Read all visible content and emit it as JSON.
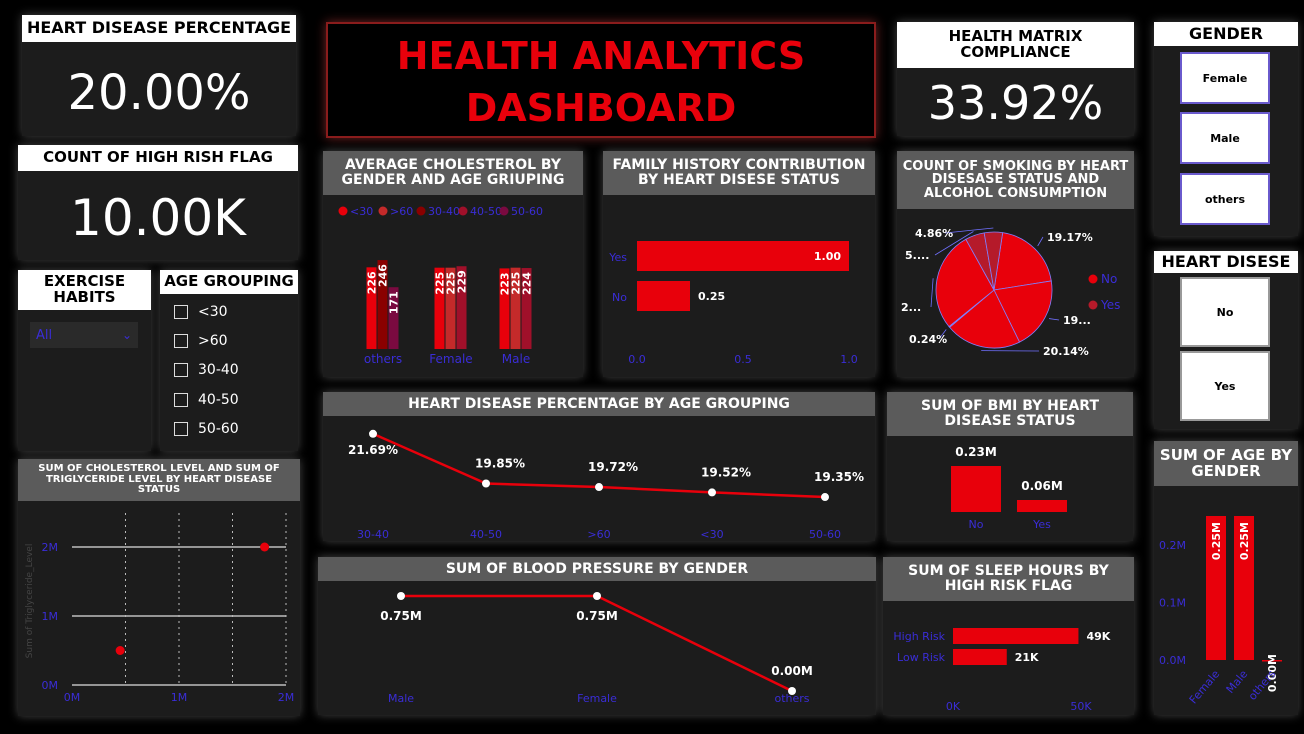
{
  "title": {
    "line1": "HEALTH ANALYTICS",
    "line2": "DASHBOARD"
  },
  "cards": {
    "heart_pct": {
      "label": "HEART DISEASE PERCENTAGE",
      "value": "20.00%"
    },
    "high_risk": {
      "label": "COUNT OF HIGH RISH FLAG",
      "value": "10.00K"
    },
    "compliance": {
      "label1": "HEALTH MATRIX",
      "label2": "COMPLIANCE",
      "value": "33.92%"
    }
  },
  "slicers": {
    "gender": {
      "label": "GENDER",
      "options": [
        "Female",
        "Male",
        "others"
      ]
    },
    "heart": {
      "label": "HEART DISESE",
      "options": [
        "No",
        "Yes"
      ]
    },
    "exercise": {
      "label1": "EXERCISE",
      "label2": "HABITS",
      "selected": "All"
    },
    "age": {
      "label": "AGE GROUPING",
      "options": [
        "<30",
        ">60",
        "30-40",
        "40-50",
        "50-60"
      ]
    }
  },
  "colors": {
    "accent": "#e8000b",
    "axis": "#3a2dd6",
    "panel": "#1c1c1c",
    "header": "#5b5b5b"
  },
  "chart_data": [
    {
      "id": "chol_by_gender_age",
      "type": "bar",
      "title": "AVERAGE CHOLESTEROL BY GENDER AND AGE GRIUPING",
      "title1": "AVERAGE CHOLESTEROL BY",
      "title2": "GENDER AND AGE GRIUPING",
      "categories": [
        "others",
        "Female",
        "Male"
      ],
      "series": [
        {
          "name": "<30",
          "values": [
            226,
            225,
            223
          ],
          "color": "#e8000b"
        },
        {
          "name": ">60",
          "values": [
            null,
            225,
            225
          ],
          "color": "#c42a2a"
        },
        {
          "name": "30-40",
          "values": [
            246,
            null,
            null
          ],
          "color": "#8a0000"
        },
        {
          "name": "40-50",
          "values": [
            null,
            229,
            224
          ],
          "color": "#a0102a"
        },
        {
          "name": "50-60",
          "values": [
            171,
            null,
            null
          ],
          "color": "#7a0a40"
        }
      ],
      "legend": [
        "<30",
        ">60",
        "30-40",
        "40-50",
        "50-60"
      ],
      "legend_colors": [
        "#e8000b",
        "#c42a2a",
        "#8a0000",
        "#a0102a",
        "#7a0a40"
      ],
      "ylim": [
        0,
        280
      ]
    },
    {
      "id": "family_history",
      "type": "bar",
      "orientation": "horizontal",
      "title1": "FAMILY HISTORY CONTRIBUTION",
      "title2": "BY HEART DISESE STATUS",
      "categories": [
        "Yes",
        "No"
      ],
      "values": [
        1.0,
        0.25
      ],
      "labels": [
        "1.00",
        "0.25"
      ],
      "xticks": [
        "0.0",
        "0.5",
        "1.0"
      ],
      "xlim": [
        0,
        1
      ]
    },
    {
      "id": "smoking_pie",
      "type": "pie",
      "title1": "COUNT OF SMOKING BY HEART",
      "title2": "DISESASE STATUS AND",
      "title3": "ALCOHOL CONSUMPTION",
      "legend": [
        "No",
        "Yes"
      ],
      "legend_colors": [
        "#e8000b",
        "#b51a2a"
      ],
      "slices": [
        {
          "label": "19.17%",
          "value": 19.17,
          "group": "No"
        },
        {
          "label": "19...",
          "value": 19.3,
          "group": "No"
        },
        {
          "label": "20.14%",
          "value": 20.14,
          "group": "No"
        },
        {
          "label": "0.24%",
          "value": 0.24,
          "group": "No"
        },
        {
          "label": "2...",
          "value": 26.5,
          "group": "No"
        },
        {
          "label": "5....",
          "value": 5.1,
          "group": "Yes"
        },
        {
          "label": "4.86%",
          "value": 4.86,
          "group": "Yes"
        }
      ]
    },
    {
      "id": "heart_by_age",
      "type": "line",
      "title": "HEART DISEASE PERCENTAGE BY AGE GROUPING",
      "categories": [
        "30-40",
        "40-50",
        ">60",
        "<30",
        "50-60"
      ],
      "values": [
        21.69,
        19.85,
        19.72,
        19.52,
        19.35
      ],
      "labels": [
        "21.69%",
        "19.85%",
        "19.72%",
        "19.52%",
        "19.35%"
      ],
      "ylim": [
        18.5,
        22.2
      ]
    },
    {
      "id": "bmi_by_status",
      "type": "bar",
      "title1": "SUM OF BMI BY HEART",
      "title2": "DISEASE STATUS",
      "categories": [
        "No",
        "Yes"
      ],
      "values": [
        0.23,
        0.06
      ],
      "labels": [
        "0.23M",
        "0.06M"
      ],
      "ylim": [
        0,
        0.23
      ]
    },
    {
      "id": "age_by_gender",
      "type": "bar",
      "title1": "SUM OF AGE BY",
      "title2": "GENDER",
      "categories": [
        "Female",
        "Male",
        "others"
      ],
      "values": [
        0.25,
        0.25,
        0.0
      ],
      "labels": [
        "0.25M",
        "0.25M",
        "0.00M"
      ],
      "yticks": [
        "0.0M",
        "0.1M",
        "0.2M"
      ],
      "ylim": [
        0,
        0.25
      ]
    },
    {
      "id": "chol_trig_scatter",
      "type": "scatter",
      "title1": "SUM OF CHOLESTEROL LEVEL AND SUM OF",
      "title2": "TRIGLYCERIDE LEVEL BY HEART DISEASE",
      "title3": "STATUS",
      "ylabel": "Sum of Triglyceride_Level",
      "points": [
        {
          "x": 1.8,
          "y": 2.0
        },
        {
          "x": 0.45,
          "y": 0.5
        }
      ],
      "xticks": [
        "0M",
        "1M",
        "2M"
      ],
      "yticks": [
        "0M",
        "1M",
        "2M"
      ],
      "xlim": [
        0,
        2
      ],
      "ylim": [
        0,
        2
      ]
    },
    {
      "id": "bp_by_gender",
      "type": "line",
      "title": "SUM OF BLOOD PRESSURE BY GENDER",
      "categories": [
        "Male",
        "Female",
        "others"
      ],
      "values": [
        0.75,
        0.75,
        0.0
      ],
      "labels": [
        "0.75M",
        "0.75M",
        "0.00M"
      ],
      "ylim": [
        0,
        0.75
      ]
    },
    {
      "id": "sleep_by_risk",
      "type": "bar",
      "orientation": "horizontal",
      "title1": "SUM OF SLEEP HOURS BY",
      "title2": "HIGH RISK FLAG",
      "categories": [
        "High Risk",
        "Low Risk"
      ],
      "values": [
        49,
        21
      ],
      "labels": [
        "49K",
        "21K"
      ],
      "xticks": [
        "0K",
        "50K"
      ],
      "xlim": [
        0,
        50
      ]
    }
  ]
}
